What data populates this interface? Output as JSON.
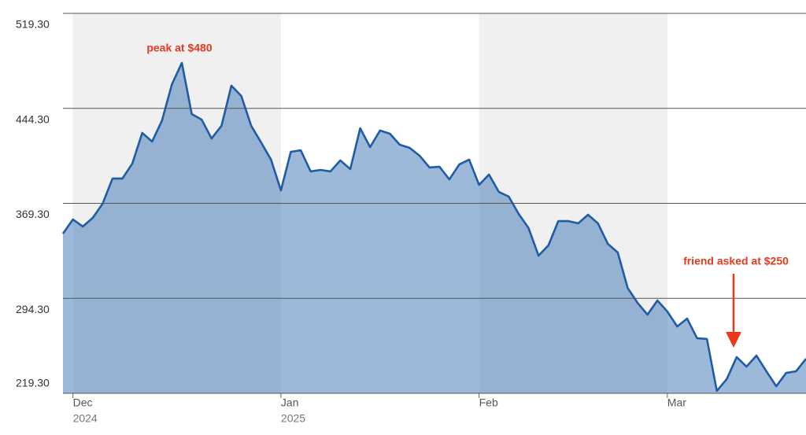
{
  "chart_data": {
    "type": "area",
    "categories": [
      null,
      "Dec",
      null,
      null,
      null,
      null,
      null,
      null,
      null,
      null,
      null,
      null,
      null,
      null,
      null,
      null,
      null,
      null,
      null,
      null,
      null,
      null,
      "Jan",
      null,
      null,
      null,
      null,
      null,
      null,
      null,
      null,
      null,
      null,
      null,
      null,
      null,
      null,
      null,
      null,
      null,
      null,
      null,
      "Feb",
      null,
      null,
      null,
      null,
      null,
      null,
      null,
      null,
      null,
      null,
      null,
      null,
      null,
      null,
      null,
      null,
      null,
      null,
      "Mar",
      null,
      null,
      null,
      null,
      null,
      null,
      null,
      null,
      null,
      null,
      null,
      null,
      null,
      null
    ],
    "category_years": [
      null,
      "2024",
      null,
      null,
      null,
      null,
      null,
      null,
      null,
      null,
      null,
      null,
      null,
      null,
      null,
      null,
      null,
      null,
      null,
      null,
      null,
      null,
      "2025",
      null,
      null,
      null,
      null,
      null,
      null,
      null,
      null,
      null,
      null,
      null,
      null,
      null,
      null,
      null,
      null,
      null,
      null,
      null,
      null,
      null,
      null,
      null,
      null,
      null,
      null,
      null,
      null,
      null,
      null,
      null,
      null,
      null,
      null,
      null,
      null,
      null,
      null,
      null,
      null,
      null,
      null,
      null,
      null,
      null,
      null,
      null,
      null,
      null,
      null,
      null,
      null,
      null
    ],
    "values": [
      345.4,
      356.6,
      351.0,
      357.8,
      369.0,
      388.9,
      388.9,
      400.7,
      424.9,
      418.1,
      434.8,
      463.4,
      480.2,
      439.8,
      435.4,
      420.5,
      430.5,
      462.2,
      454.1,
      430.5,
      417.4,
      403.8,
      379.5,
      410.0,
      411.2,
      394.5,
      395.7,
      394.5,
      403.2,
      396.3,
      428.6,
      413.7,
      426.8,
      424.3,
      415.6,
      413.1,
      406.9,
      397.6,
      398.2,
      388.2,
      400.0,
      403.8,
      383.9,
      392.0,
      378.3,
      374.6,
      360.9,
      349.7,
      328.0,
      336.1,
      355.3,
      355.3,
      353.5,
      360.3,
      353.5,
      337.3,
      330.5,
      302.5,
      290.7,
      281.4,
      292.6,
      283.9,
      272.1,
      278.3,
      262.8,
      262.2,
      221.2,
      230.5,
      247.9,
      240.4,
      249.1,
      236.7,
      224.9,
      235.4,
      236.7,
      246.6
    ],
    "color": "#1f5ca3",
    "ylim": [
      219.3,
      519.3
    ],
    "yticks": [
      {
        "value": 219.3,
        "label": "219.30"
      },
      {
        "value": 294.3,
        "label": "294.30"
      },
      {
        "value": 369.3,
        "label": "369.30"
      },
      {
        "value": 444.3,
        "label": "444.30"
      },
      {
        "value": 519.3,
        "label": "519.30"
      }
    ],
    "grid": true,
    "shade_alternate_months": true,
    "annotations": [
      "peak at $480",
      "friend asked at $250"
    ]
  }
}
